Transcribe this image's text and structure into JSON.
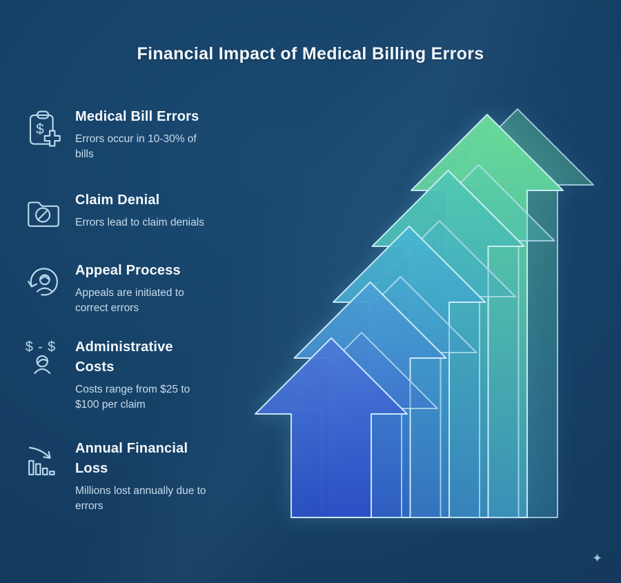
{
  "header": {
    "title": "Financial Impact of Medical Billing Errors"
  },
  "items": [
    {
      "icon": "medical-bill-clipboard",
      "title": "Medical Bill Errors",
      "description": "Errors occur in 10-30% of\nbills"
    },
    {
      "icon": "claim-denied-folder",
      "title": "Claim Denial",
      "description": "Errors lead to claim denials"
    },
    {
      "icon": "appeal-cycle-person",
      "title": "Appeal Process",
      "description": "Appeals are initiated to\ncorrect errors"
    },
    {
      "icon": "admin-cost-person",
      "title": "Administrative\nCosts",
      "description": "Costs range from $25 to\n$100 per claim"
    },
    {
      "icon": "declining-bar-chart",
      "title": "Annual Financial\nLoss",
      "description": "Millions lost annually due to\nerrors"
    }
  ],
  "graphic": {
    "type": "ascending-arrow-steps",
    "arrow_count": 5,
    "outline_color": "#cdeaf6",
    "arrows": [
      {
        "name": "step-1",
        "top": "#4a78d8",
        "bottom": "#2a4ec4"
      },
      {
        "name": "step-2",
        "top": "#49a0d4",
        "bottom": "#3165c0"
      },
      {
        "name": "step-3",
        "top": "#47b6cd",
        "bottom": "#3579be"
      },
      {
        "name": "step-4",
        "top": "#4fc9b2",
        "bottom": "#3787ba"
      },
      {
        "name": "step-5",
        "top": "#6ae098",
        "bottom": "#3b96b8"
      }
    ]
  },
  "decorations": {
    "sparkle": "✦"
  },
  "colors": {
    "background": "#153e63",
    "title_text": "#f2f7fb",
    "body_text": "#c8dcec",
    "icon_stroke": "#b9d8ec"
  }
}
